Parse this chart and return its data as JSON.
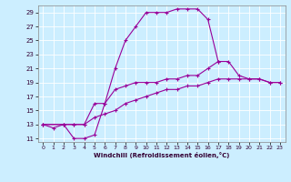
{
  "xlabel": "Windchill (Refroidissement éolien,°C)",
  "bg_color": "#cceeff",
  "line_color": "#990099",
  "xlim": [
    -0.5,
    23.5
  ],
  "ylim": [
    10.5,
    30.0
  ],
  "xticks": [
    0,
    1,
    2,
    3,
    4,
    5,
    6,
    7,
    8,
    9,
    10,
    11,
    12,
    13,
    14,
    15,
    16,
    17,
    18,
    19,
    20,
    21,
    22,
    23
  ],
  "yticks": [
    11,
    13,
    15,
    17,
    19,
    21,
    23,
    25,
    27,
    29
  ],
  "line1_x": [
    0,
    1,
    2,
    3,
    4,
    5,
    6,
    7,
    8,
    9,
    10,
    11,
    12,
    13,
    14,
    15,
    16,
    17
  ],
  "line1_y": [
    13,
    12.5,
    13,
    11,
    11,
    11.5,
    16,
    21,
    25,
    27,
    29,
    29,
    29,
    29.5,
    29.5,
    29.5,
    28,
    22
  ],
  "line2_x": [
    0,
    2,
    3,
    4,
    5,
    6,
    7,
    8,
    9,
    10,
    11,
    12,
    13,
    14,
    15,
    16,
    17,
    18,
    19,
    20,
    21,
    22,
    23
  ],
  "line2_y": [
    13,
    13,
    13,
    13,
    16,
    16,
    18,
    18.5,
    19,
    19,
    19,
    19.5,
    19.5,
    20,
    20,
    21,
    22,
    22,
    20,
    19.5,
    19.5,
    19,
    19
  ],
  "line3_x": [
    0,
    2,
    3,
    4,
    5,
    6,
    7,
    8,
    9,
    10,
    11,
    12,
    13,
    14,
    15,
    16,
    17,
    18,
    19,
    20,
    21,
    22,
    23
  ],
  "line3_y": [
    13,
    13,
    13,
    13,
    14,
    14.5,
    15,
    16,
    16.5,
    17,
    17.5,
    18,
    18,
    18.5,
    18.5,
    19,
    19.5,
    19.5,
    19.5,
    19.5,
    19.5,
    19,
    19
  ]
}
